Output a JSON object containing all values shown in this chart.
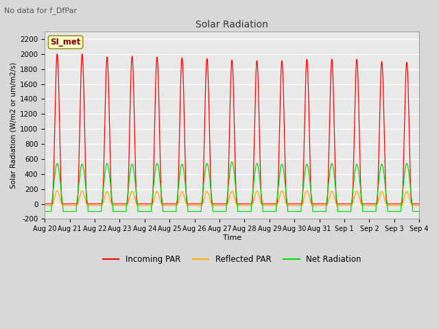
{
  "title": "Solar Radiation",
  "subtitle": "No data for f_DfPar",
  "xlabel": "Time",
  "ylabel": "Solar Radiation (W/m2 or um/m2/s)",
  "ylim": [
    -200,
    2300
  ],
  "yticks": [
    -200,
    0,
    200,
    400,
    600,
    800,
    1000,
    1200,
    1400,
    1600,
    1800,
    2000,
    2200
  ],
  "num_days": 15,
  "x_tick_labels": [
    "Aug 20",
    "Aug 21",
    "Aug 22",
    "Aug 23",
    "Aug 24",
    "Aug 25",
    "Aug 26",
    "Aug 27",
    "Aug 28",
    "Aug 29",
    "Aug 30",
    "Aug 31",
    "Sep 1",
    "Sep 2",
    "Sep 3",
    "Sep 4"
  ],
  "incoming_color": "#ff0000",
  "reflected_color": "#ffaa00",
  "net_color": "#00dd00",
  "fig_bg_color": "#d8d8d8",
  "plot_bg_color": "#e8e8e8",
  "legend_label_incoming": "Incoming PAR",
  "legend_label_reflected": "Reflected PAR",
  "legend_label_net": "Net Radiation",
  "annotation_text": "SI_met",
  "incoming_peak": 2000,
  "reflected_peak": 180,
  "net_peak": 540,
  "net_night_min": -100,
  "reflected_night": -20,
  "points_per_day": 1440
}
